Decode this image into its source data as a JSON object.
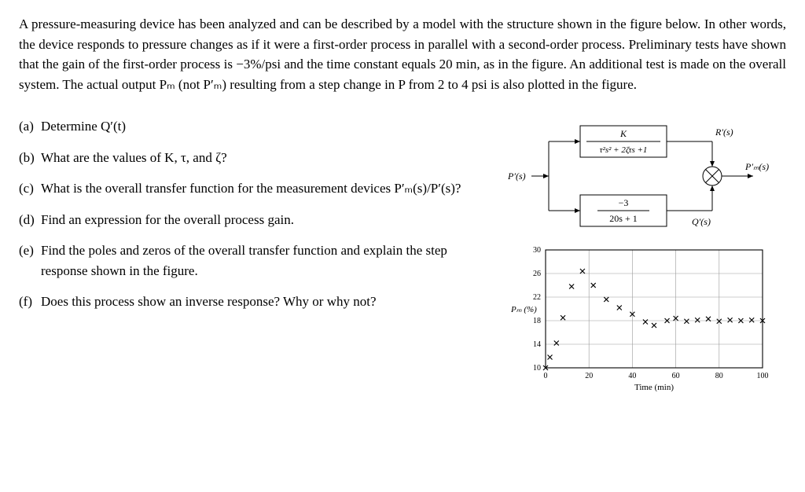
{
  "intro": {
    "text": "A pressure-measuring device has been analyzed and can be described by a model with the structure shown in the figure below. In other words, the device responds to pressure changes as if it were a first-order process in parallel with a second-order process. Preliminary tests have shown that the gain of the first-order process is −3%/psi and the time constant equals 20 min, as in the figure. An additional test is made on the overall system. The actual output Pₘ (not P′ₘ) resulting from a step change in P from 2 to 4 psi is also plotted in the figure."
  },
  "questions": {
    "a": {
      "label": "(a)",
      "text": "Determine Q′(t)"
    },
    "b": {
      "label": "(b)",
      "text": "What are the values of K, τ, and ζ?"
    },
    "c": {
      "label": "(c)",
      "text": "What is the overall transfer function for the measurement devices P′ₘ(s)/P′(s)?"
    },
    "d": {
      "label": "(d)",
      "text": "Find an expression for the overall process gain."
    },
    "e": {
      "label": "(e)",
      "text": "Find the poles and zeros of the overall transfer function and explain the step response shown in the figure."
    },
    "f": {
      "label": "(f)",
      "text": "Does this process show an inverse response? Why or why not?"
    }
  },
  "block_diagram": {
    "input_label": "P′(s)",
    "top_block": {
      "num": "K",
      "den": "τ²s² + 2ζτs +1"
    },
    "top_out": "R′(s)",
    "bottom_block": {
      "num": "−3",
      "den": "20s + 1"
    },
    "bottom_out": "Q′(s)",
    "sum_output": "P′ₘ(s)",
    "line_color": "#000000",
    "box_border": "#000000",
    "font_size": 12
  },
  "chart": {
    "type": "scatter",
    "xlabel": "Time (min)",
    "ylabel": "Pₘ (%)",
    "xlim": [
      0,
      100
    ],
    "ylim": [
      10,
      30
    ],
    "xticks": [
      0,
      20,
      40,
      60,
      80,
      100
    ],
    "yticks": [
      10,
      14,
      18,
      22,
      26,
      30
    ],
    "grid_color": "#999999",
    "background_color": "#ffffff",
    "marker": "x",
    "marker_color": "#000000",
    "marker_size": 6,
    "label_fontsize": 11,
    "tick_fontsize": 10,
    "data": {
      "x": [
        0,
        2,
        5,
        8,
        12,
        17,
        22,
        28,
        34,
        40,
        46,
        50,
        56,
        60,
        65,
        70,
        75,
        80,
        85,
        90,
        95,
        100
      ],
      "y": [
        10.0,
        11.8,
        14.2,
        18.5,
        23.8,
        26.4,
        24.0,
        21.6,
        20.2,
        19.1,
        17.8,
        17.2,
        18.0,
        18.4,
        17.9,
        18.1,
        18.3,
        17.9,
        18.1,
        18.0,
        18.1,
        18.0
      ]
    }
  }
}
